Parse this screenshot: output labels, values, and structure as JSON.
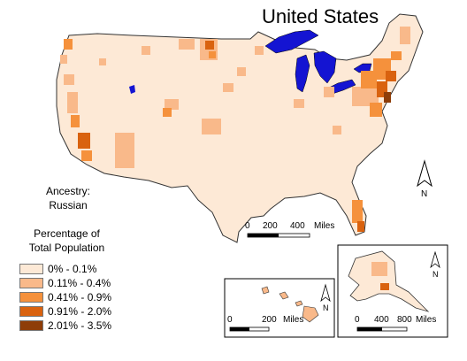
{
  "map": {
    "title": "United States",
    "subject_line1": "Ancestry:",
    "subject_line2": "Russian",
    "legend": {
      "title_line1": "Percentage of",
      "title_line2": "Total Population",
      "classes": [
        {
          "label": "0% - 0.1%",
          "color": "#fde9d6"
        },
        {
          "label": "0.11% - 0.4%",
          "color": "#f9b98a"
        },
        {
          "label": "0.41% - 0.9%",
          "color": "#f5913c"
        },
        {
          "label": "0.91% - 2.0%",
          "color": "#d9620f"
        },
        {
          "label": "2.01% - 3.5%",
          "color": "#8e3d08"
        }
      ]
    },
    "water_color": "#1414d2",
    "north_arrow_label": "N",
    "scale_main": {
      "ticks": [
        "0",
        "200",
        "400"
      ],
      "unit": "Miles"
    },
    "scale_hawaii": {
      "ticks": [
        "0",
        "200"
      ],
      "unit": "Miles"
    },
    "scale_alaska": {
      "ticks": [
        "0",
        "400",
        "800"
      ],
      "unit": "Miles"
    }
  }
}
